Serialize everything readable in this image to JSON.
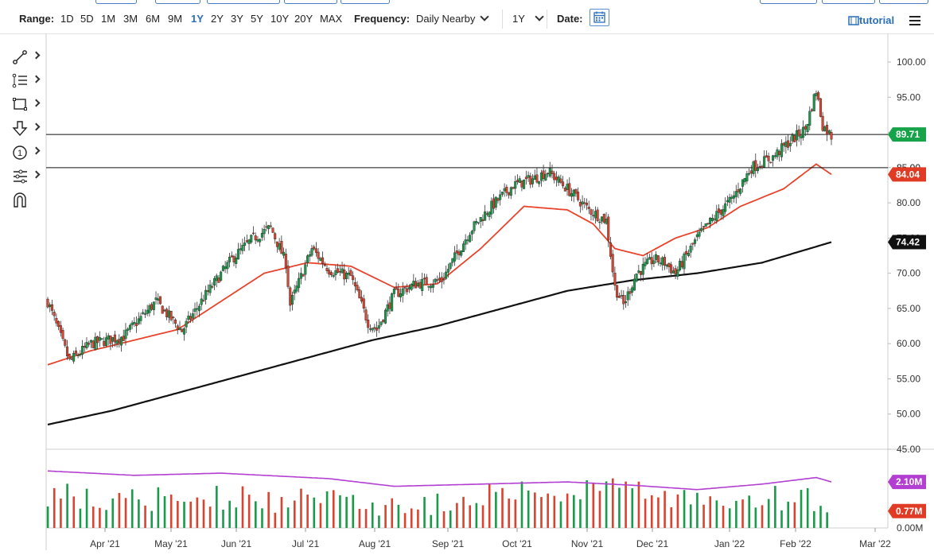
{
  "toolbar": {
    "range_label": "Range:",
    "ranges": [
      "1D",
      "5D",
      "1M",
      "3M",
      "6M",
      "9M",
      "1Y",
      "2Y",
      "3Y",
      "5Y",
      "10Y",
      "20Y",
      "MAX"
    ],
    "active_range": "1Y",
    "frequency_label": "Frequency:",
    "frequency_value": "Daily Nearby",
    "period_value": "1Y",
    "date_label": "Date:",
    "tutorial_label": "tutorial"
  },
  "side_tools": [
    "line-tool-icon",
    "fib-tool-icon",
    "rectangle-tool-icon",
    "arrow-tool-icon",
    "note-tool-icon",
    "measure-tool-icon",
    "magnet-icon"
  ],
  "colors": {
    "up": "#1a9a4a",
    "down": "#d8442f",
    "ma_fast": "#e8432b",
    "ma_slow": "#111111",
    "volume_avg": "#b23fd1",
    "badge_green": "#17a34a",
    "badge_red": "#e03b25",
    "badge_black": "#111111",
    "badge_purple": "#b23fd1"
  },
  "chart_data": {
    "type": "candlestick",
    "x_labels": [
      "Apr '21",
      "May '21",
      "Jun '21",
      "Jul '21",
      "Aug '21",
      "Sep '21",
      "Oct '21",
      "Nov '21",
      "Dec '21",
      "Jan '22",
      "Feb '22",
      "Mar '22"
    ],
    "price_ticks": [
      "100.00",
      "95.00",
      "90.00",
      "85.00",
      "80.00",
      "75.00",
      "70.00",
      "65.00",
      "60.00",
      "55.00",
      "50.00",
      "45.00"
    ],
    "ylim": [
      42.5,
      101.5
    ],
    "volume_ticks": [
      "0.00M"
    ],
    "hlines": [
      89.71,
      85.0
    ],
    "badges": {
      "last_price": "89.71",
      "ma_fast": "84.04",
      "ma_slow": "74.42",
      "volume_avg": "2.10M",
      "last_volume": "0.77M",
      "hline2": "85.00"
    },
    "close_keypoints": [
      [
        0,
        66.0
      ],
      [
        10,
        57.5
      ],
      [
        20,
        60.0
      ],
      [
        35,
        61.0
      ],
      [
        50,
        66.0
      ],
      [
        62,
        61.8
      ],
      [
        72,
        66.5
      ],
      [
        85,
        72.0
      ],
      [
        95,
        75.0
      ],
      [
        103,
        76.5
      ],
      [
        110,
        71.5
      ],
      [
        112,
        65.5
      ],
      [
        122,
        73.5
      ],
      [
        130,
        70.5
      ],
      [
        140,
        69.5
      ],
      [
        148,
        63.0
      ],
      [
        152,
        62.0
      ],
      [
        160,
        67.0
      ],
      [
        170,
        68.5
      ],
      [
        182,
        69.0
      ],
      [
        195,
        76.0
      ],
      [
        205,
        79.5
      ],
      [
        215,
        82.5
      ],
      [
        225,
        83.5
      ],
      [
        231,
        84.5
      ],
      [
        240,
        82.0
      ],
      [
        250,
        79.0
      ],
      [
        258,
        77.5
      ],
      [
        262,
        68.0
      ],
      [
        266,
        65.5
      ],
      [
        272,
        70.0
      ],
      [
        280,
        72.0
      ],
      [
        285,
        71.5
      ],
      [
        290,
        70.0
      ],
      [
        300,
        75.0
      ],
      [
        308,
        78.0
      ],
      [
        316,
        80.5
      ],
      [
        325,
        85.0
      ],
      [
        335,
        86.5
      ],
      [
        342,
        88.5
      ],
      [
        350,
        90.5
      ],
      [
        355,
        96.0
      ],
      [
        358,
        91.0
      ],
      [
        362,
        89.5
      ]
    ],
    "ma_fast_keypoints": [
      [
        0,
        57.0
      ],
      [
        20,
        59.0
      ],
      [
        40,
        60.5
      ],
      [
        60,
        62.0
      ],
      [
        80,
        66.0
      ],
      [
        100,
        70.0
      ],
      [
        120,
        71.5
      ],
      [
        140,
        71.0
      ],
      [
        160,
        68.0
      ],
      [
        180,
        68.5
      ],
      [
        200,
        73.5
      ],
      [
        220,
        79.5
      ],
      [
        240,
        79.0
      ],
      [
        252,
        77.0
      ],
      [
        262,
        73.5
      ],
      [
        275,
        72.5
      ],
      [
        290,
        75.0
      ],
      [
        305,
        76.5
      ],
      [
        320,
        79.5
      ],
      [
        340,
        82.0
      ],
      [
        355,
        85.5
      ],
      [
        362,
        84.04
      ]
    ],
    "ma_slow_keypoints": [
      [
        0,
        48.5
      ],
      [
        30,
        50.5
      ],
      [
        60,
        53.0
      ],
      [
        90,
        55.5
      ],
      [
        120,
        58.0
      ],
      [
        150,
        60.5
      ],
      [
        180,
        62.5
      ],
      [
        210,
        65.0
      ],
      [
        240,
        67.5
      ],
      [
        270,
        69.0
      ],
      [
        300,
        70.0
      ],
      [
        330,
        71.5
      ],
      [
        362,
        74.42
      ]
    ],
    "volume_avg_keypoints": [
      [
        0,
        2.6
      ],
      [
        40,
        2.4
      ],
      [
        80,
        2.5
      ],
      [
        100,
        2.4
      ],
      [
        130,
        2.25
      ],
      [
        160,
        1.9
      ],
      [
        200,
        2.0
      ],
      [
        240,
        2.1
      ],
      [
        270,
        1.95
      ],
      [
        300,
        1.75
      ],
      [
        330,
        2.0
      ],
      [
        355,
        2.3
      ],
      [
        362,
        2.1
      ]
    ],
    "volume_ylim": [
      0,
      3.3
    ]
  }
}
